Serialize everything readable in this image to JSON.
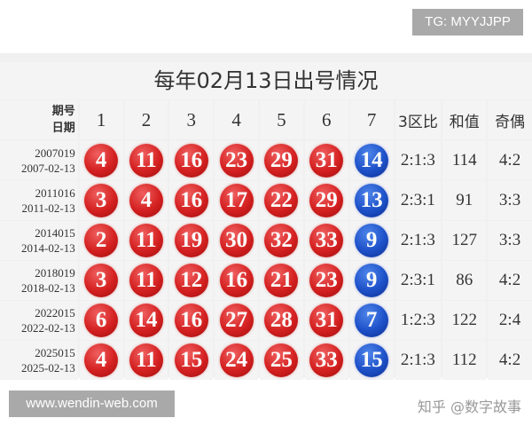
{
  "badge_top": "TG: MYYJJPP",
  "badge_bottom": "www.wendin-web.com",
  "watermark": "知乎 @数字故事",
  "colors": {
    "red_ball": "#d42020",
    "blue_ball": "#1d50c8"
  },
  "table": {
    "title": "每年02月13日出号情况",
    "header": {
      "issue_label": "期号",
      "date_label": "日期",
      "positions": [
        "1",
        "2",
        "3",
        "4",
        "5",
        "6",
        "7"
      ],
      "ratio": "3区比",
      "sum": "和值",
      "odd_even": "奇偶"
    },
    "rows": [
      {
        "issue": "2007019",
        "date": "2007-02-13",
        "red": [
          "4",
          "11",
          "16",
          "23",
          "29",
          "31"
        ],
        "blue": "14",
        "ratio": "2:1:3",
        "sum": "114",
        "odd_even": "4:2"
      },
      {
        "issue": "2011016",
        "date": "2011-02-13",
        "red": [
          "3",
          "4",
          "16",
          "17",
          "22",
          "29"
        ],
        "blue": "13",
        "ratio": "2:3:1",
        "sum": "91",
        "odd_even": "3:3"
      },
      {
        "issue": "2014015",
        "date": "2014-02-13",
        "red": [
          "2",
          "11",
          "19",
          "30",
          "32",
          "33"
        ],
        "blue": "9",
        "ratio": "2:1:3",
        "sum": "127",
        "odd_even": "3:3"
      },
      {
        "issue": "2018019",
        "date": "2018-02-13",
        "red": [
          "3",
          "11",
          "12",
          "16",
          "21",
          "23"
        ],
        "blue": "9",
        "ratio": "2:3:1",
        "sum": "86",
        "odd_even": "4:2"
      },
      {
        "issue": "2022015",
        "date": "2022-02-13",
        "red": [
          "6",
          "14",
          "16",
          "27",
          "28",
          "31"
        ],
        "blue": "7",
        "ratio": "1:2:3",
        "sum": "122",
        "odd_even": "2:4"
      },
      {
        "issue": "2025015",
        "date": "2025-02-13",
        "red": [
          "4",
          "11",
          "15",
          "24",
          "25",
          "33"
        ],
        "blue": "15",
        "ratio": "2:1:3",
        "sum": "112",
        "odd_even": "4:2"
      }
    ]
  }
}
